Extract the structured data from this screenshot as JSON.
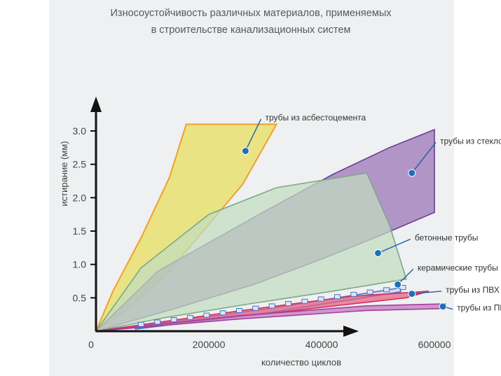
{
  "chart_data": {
    "type": "area",
    "title": "Износоустойчивость различных материалов, применяемых в строительстве канализационных систем",
    "title_lines": [
      "Износоустойчивость различных материалов, применяемых",
      "в строительстве канализационных систем"
    ],
    "xlabel": "количество циклов",
    "ylabel": "истирание (мм)",
    "xlim": [
      0,
      650000
    ],
    "ylim": [
      0,
      3.3
    ],
    "x_ticks": [
      0,
      200000,
      400000,
      600000
    ],
    "x_tick_labels": [
      "0",
      "200000",
      "400000",
      "600000"
    ],
    "y_ticks": [
      0.5,
      1.0,
      1.5,
      2.0,
      2.5,
      3.0
    ],
    "y_tick_labels": [
      "0.5",
      "1.0",
      "1.5",
      "2.0",
      "2.5",
      "3.0"
    ],
    "grid": false,
    "series": [
      {
        "name": "трубы из асбестоцемента",
        "fill": "#e8e070",
        "stroke": "#f0a030",
        "marker": [
          265000,
          2.7
        ],
        "label_pos": [
          300000,
          3.2
        ],
        "polygon": [
          [
            0,
            0
          ],
          [
            30000,
            0.6
          ],
          [
            80000,
            1.4
          ],
          [
            130000,
            2.3
          ],
          [
            160000,
            3.1
          ],
          [
            320000,
            3.1
          ],
          [
            300000,
            2.8
          ],
          [
            260000,
            2.2
          ],
          [
            200000,
            1.6
          ],
          [
            130000,
            0.9
          ],
          [
            60000,
            0.35
          ],
          [
            0,
            0
          ]
        ]
      },
      {
        "name": "трубы из стекловолокна",
        "fill": "#9a72b6",
        "stroke": "#6a3e94",
        "marker": [
          560000,
          2.37
        ],
        "label_pos": [
          610000,
          2.85
        ],
        "polygon": [
          [
            0,
            0
          ],
          [
            110000,
            0.9
          ],
          [
            300000,
            1.8
          ],
          [
            420000,
            2.35
          ],
          [
            520000,
            2.75
          ],
          [
            600000,
            3.02
          ],
          [
            600000,
            1.78
          ],
          [
            500000,
            1.42
          ],
          [
            400000,
            1.08
          ],
          [
            280000,
            0.7
          ],
          [
            140000,
            0.34
          ],
          [
            0,
            0
          ]
        ]
      },
      {
        "name": "бетонные трубы",
        "fill": "#c2ddc0",
        "stroke": "#7aaa84",
        "marker": [
          500000,
          1.17
        ],
        "label_pos": [
          565000,
          1.4
        ],
        "polygon": [
          [
            0,
            0
          ],
          [
            80000,
            0.95
          ],
          [
            200000,
            1.75
          ],
          [
            320000,
            2.15
          ],
          [
            480000,
            2.37
          ],
          [
            520000,
            1.6
          ],
          [
            550000,
            0.78
          ],
          [
            420000,
            0.6
          ],
          [
            280000,
            0.42
          ],
          [
            120000,
            0.2
          ],
          [
            0,
            0
          ]
        ]
      },
      {
        "name": "керамические трубы",
        "fill": "#c7d4f2",
        "stroke": "#4a72c4",
        "marker": [
          535000,
          0.7
        ],
        "label_pos": [
          570000,
          0.95
        ],
        "polygon": [
          [
            70000,
            0.07
          ],
          [
            300000,
            0.33
          ],
          [
            540000,
            0.65
          ],
          [
            540000,
            0.59
          ],
          [
            300000,
            0.27
          ],
          [
            70000,
            0.03
          ]
        ]
      },
      {
        "name": "трубы из ПВХ",
        "fill": "#ea5e80",
        "stroke": "#d03060",
        "marker": [
          560000,
          0.56
        ],
        "label_pos": [
          620000,
          0.62
        ],
        "polygon": [
          [
            0,
            0
          ],
          [
            250000,
            0.3
          ],
          [
            450000,
            0.52
          ],
          [
            590000,
            0.6
          ],
          [
            550000,
            0.5
          ],
          [
            300000,
            0.26
          ],
          [
            0,
            0
          ]
        ]
      },
      {
        "name": "трубы из ПП",
        "fill": "#c673c0",
        "stroke": "#a0409a",
        "marker": [
          615000,
          0.37
        ],
        "label_pos": [
          640000,
          0.35
        ],
        "polygon": [
          [
            0,
            0
          ],
          [
            250000,
            0.23
          ],
          [
            480000,
            0.38
          ],
          [
            620000,
            0.41
          ],
          [
            620000,
            0.34
          ],
          [
            480000,
            0.31
          ],
          [
            250000,
            0.18
          ],
          [
            0,
            0
          ]
        ]
      }
    ]
  }
}
